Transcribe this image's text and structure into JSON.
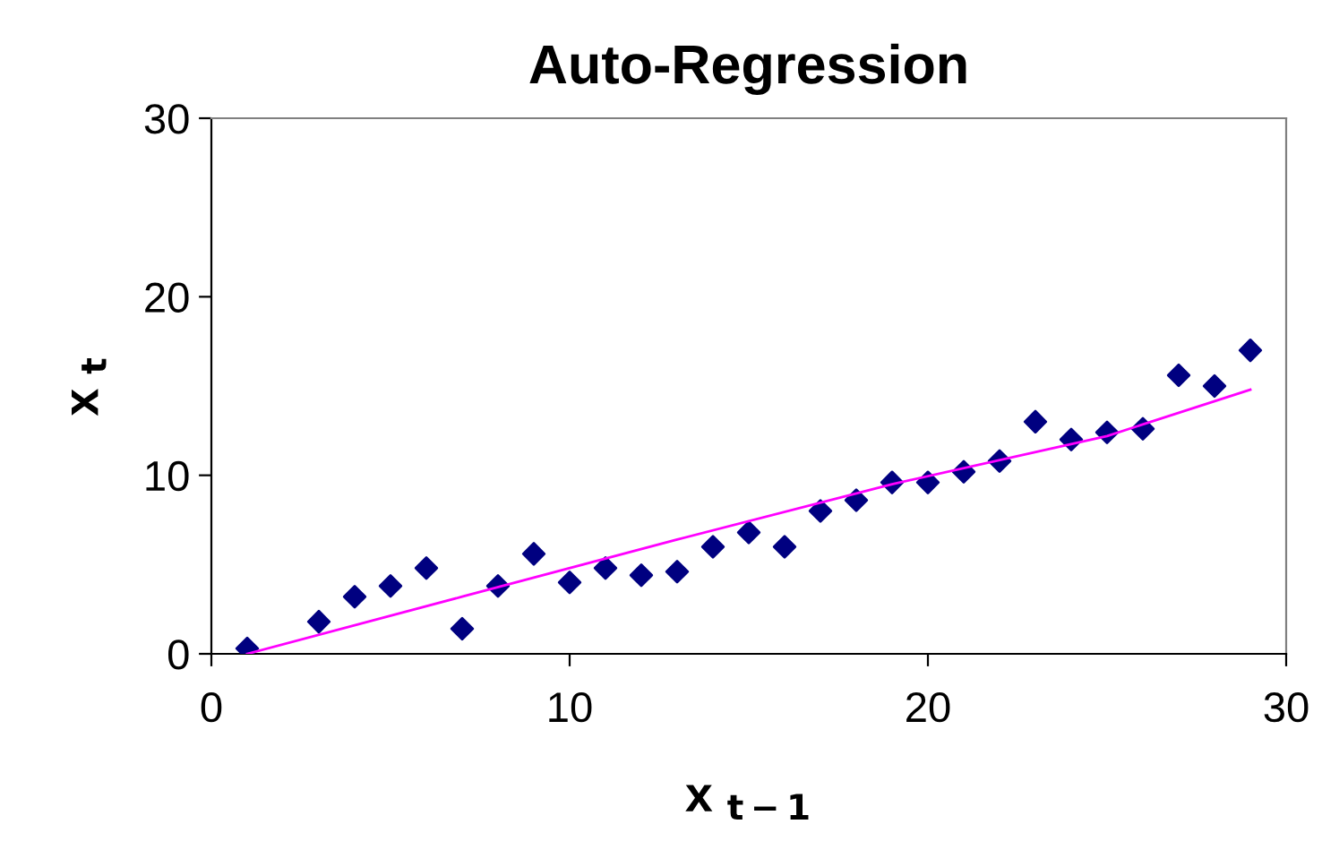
{
  "chart_data": {
    "type": "scatter",
    "title": "Auto-Regression",
    "xlabel": "x $_{t−1}$",
    "ylabel": "x $_{t}$",
    "xlim": [
      0,
      30
    ],
    "xticks": [
      0,
      10,
      20,
      30
    ],
    "ylim": [
      0,
      30
    ],
    "yticks": [
      0,
      10,
      20,
      30
    ],
    "grid": false,
    "legend": false,
    "series": [
      {
        "color": "#000080",
        "marker": "diamond",
        "x": [
          1,
          3,
          4,
          5,
          6,
          7,
          8,
          9,
          10,
          11,
          12,
          13,
          14,
          15,
          16,
          17,
          18,
          19,
          20,
          21,
          22,
          23,
          24,
          25,
          26,
          27,
          28,
          29
        ],
        "values": [
          0.3,
          1.8,
          3.2,
          3.8,
          4.8,
          1.4,
          3.8,
          5.6,
          4.0,
          4.8,
          4.4,
          4.6,
          6.0,
          6.8,
          6.0,
          8.0,
          8.6,
          9.6,
          9.6,
          10.2,
          10.8,
          13.0,
          12.0,
          12.4,
          12.6,
          15.6,
          15.0,
          17.0
        ]
      },
      {
        "type": "line",
        "color": "#ff00ff",
        "marker": "none",
        "line_style": "solid",
        "x": [
          1,
          7,
          13,
          19,
          25,
          29
        ],
        "values": [
          0.0,
          3.2,
          6.4,
          9.5,
          12.2,
          14.8
        ]
      }
    ]
  }
}
